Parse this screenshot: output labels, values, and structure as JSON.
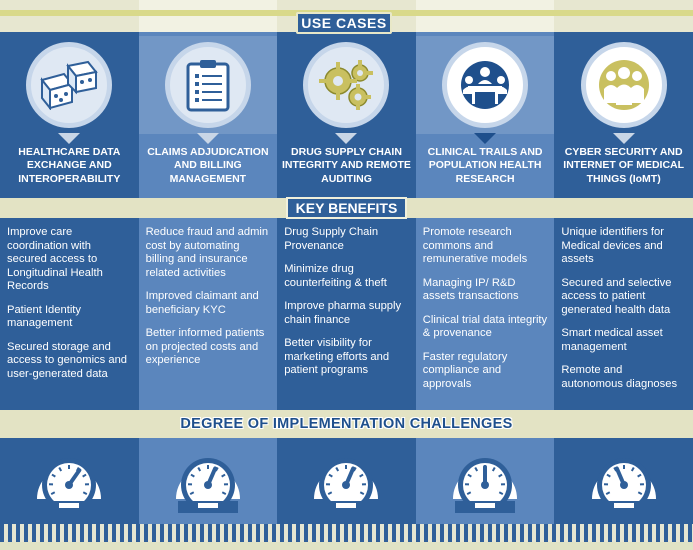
{
  "sections": {
    "use_cases": "USE CASES",
    "key_benefits": "KEY BENEFITS",
    "challenges": "DEGREE OF IMPLEMENTATION CHALLENGES"
  },
  "columns": [
    {
      "icon": "dice-icon",
      "title": "HEALTHCARE DATA EXCHANGE AND INTEROPERABILITY",
      "benefits": [
        "Improve care coordination with secured access to Longitudinal Health Records",
        "Patient Identity management",
        "Secured storage and access to genomics and user-generated data"
      ],
      "gauge_level": 0.65
    },
    {
      "icon": "document-list-icon",
      "title": "CLAIMS ADJUDICATION AND BILLING MANAGEMENT",
      "benefits": [
        "Reduce fraud and admin cost by automating billing and insurance related activities",
        "Improved claimant and beneficiary KYC",
        "Better informed patients  on projected costs and experience"
      ],
      "gauge_level": 0.6
    },
    {
      "icon": "gears-icon",
      "title": "DRUG SUPPLY CHAIN INTEGRITY AND REMOTE AUDITING",
      "benefits": [
        "Drug Supply Chain Provenance",
        "Minimize drug counterfeiting & theft",
        "Improve pharma supply chain finance",
        "Better visibility for marketing efforts  and patient programs"
      ],
      "gauge_level": 0.6
    },
    {
      "icon": "meeting-icon",
      "title": "CLINICAL TRAILS  AND POPULATION HEALTH RESEARCH",
      "benefits": [
        "Promote research commons and remunerative models",
        "Managing IP/ R&D assets transactions",
        "Clinical trial data integrity & provenance",
        "Faster regulatory compliance and approvals"
      ],
      "gauge_level": 0.5
    },
    {
      "icon": "people-group-icon",
      "title": "CYBER SECURITY AND INTERNET OF MEDICAL THINGS (IoMT)",
      "benefits": [
        "Unique identifiers for Medical devices and assets",
        "Secured and selective access to patient generated health data",
        "Smart medical asset management",
        "Remote and autonomous diagnoses"
      ],
      "gauge_level": 0.4
    }
  ]
}
